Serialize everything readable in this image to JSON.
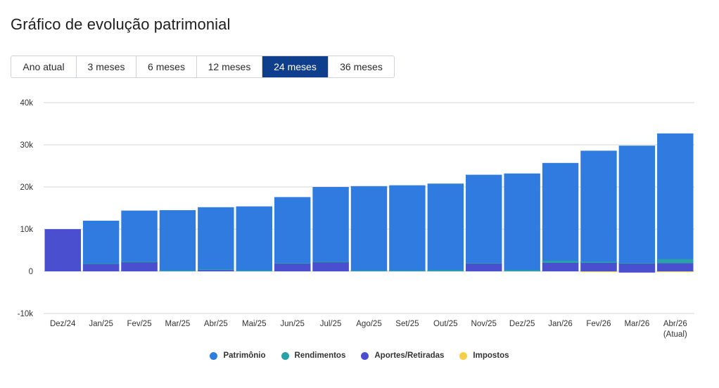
{
  "header": {
    "title": "Gráfico de evolução patrimonial"
  },
  "periods": {
    "items": [
      "Ano atual",
      "3 meses",
      "6 meses",
      "12 meses",
      "24 meses",
      "36 meses"
    ],
    "selected": "24 meses"
  },
  "colors": {
    "patrimonio": "#2f7be0",
    "rendimentos": "#2aa0a8",
    "aportes": "#4a4fcf",
    "impostos": "#f5cf47",
    "grid": "#d4d4d4",
    "active_tab": "#0f3e8c"
  },
  "chart_data": {
    "type": "bar",
    "title": "Gráfico de evolução patrimonial",
    "xlabel": "",
    "ylabel": "",
    "ylim": [
      -10000,
      40000
    ],
    "yticks": [
      40000,
      30000,
      20000,
      10000,
      0,
      -10000
    ],
    "ytick_labels": [
      "40k",
      "30k",
      "20k",
      "10k",
      "0",
      "-10k"
    ],
    "grid": true,
    "legend_position": "bottom-center",
    "categories": [
      "Dez/24",
      "Jan/25",
      "Fev/25",
      "Mar/25",
      "Abr/25",
      "Mai/25",
      "Jun/25",
      "Jul/25",
      "Ago/25",
      "Set/25",
      "Out/25",
      "Nov/25",
      "Dez/25",
      "Jan/26",
      "Fev/26",
      "Mar/26",
      "Abr/26\n(Atual)"
    ],
    "series": [
      {
        "name": "Patrimônio",
        "key": "patrimonio",
        "values": [
          10000,
          12000,
          14400,
          14500,
          15200,
          15400,
          17600,
          20000,
          20200,
          20400,
          20800,
          22900,
          23200,
          25700,
          28600,
          29800,
          32700
        ]
      },
      {
        "name": "Rendimentos",
        "key": "rendimentos",
        "values": [
          0,
          100,
          100,
          200,
          200,
          200,
          100,
          100,
          200,
          200,
          300,
          100,
          300,
          500,
          300,
          100,
          1000
        ]
      },
      {
        "name": "Aportes/Retiradas",
        "key": "aportes",
        "values": [
          10000,
          1800,
          2200,
          0,
          300,
          0,
          1900,
          2200,
          0,
          0,
          0,
          1900,
          0,
          2000,
          2000,
          1900,
          1900
        ]
      },
      {
        "name": "Impostos",
        "key": "impostos",
        "values": [
          0,
          0,
          0,
          0,
          0,
          0,
          0,
          0,
          0,
          0,
          0,
          0,
          0,
          0,
          -100,
          -100,
          -100
        ]
      }
    ],
    "negative_overlay": {
      "name": "Aportes/Retiradas",
      "category": "Mar/26",
      "value": -300
    }
  }
}
